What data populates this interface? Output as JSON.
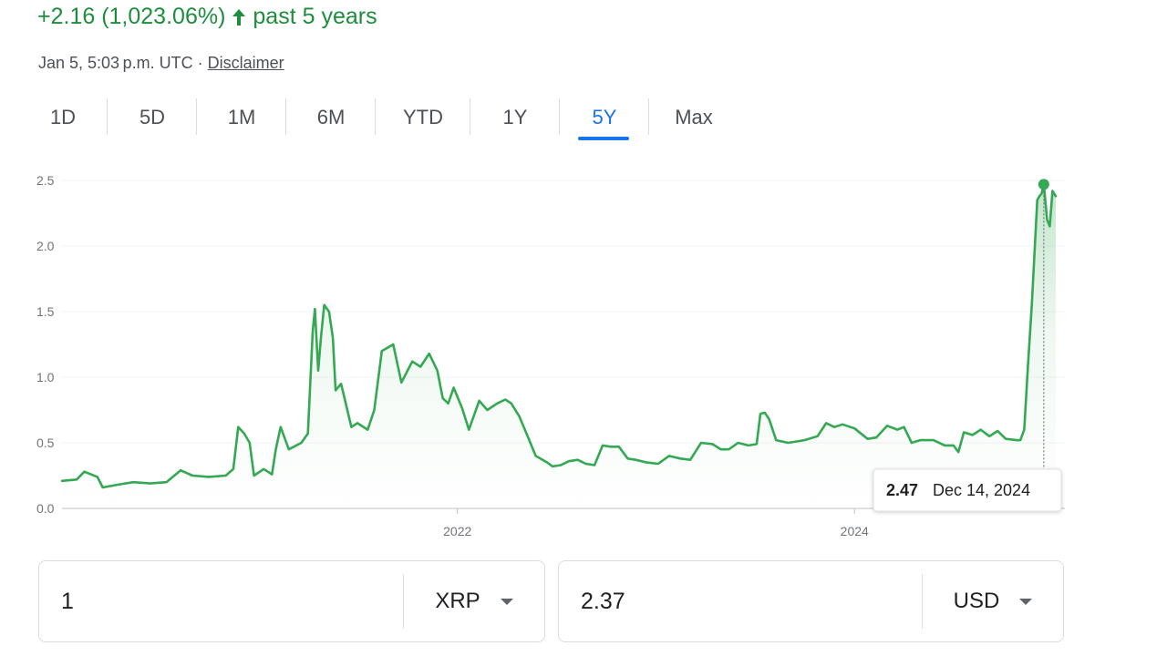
{
  "header": {
    "change_text": "+2.16 (1,023.06%)",
    "period_text": "past 5 years",
    "timestamp": "Jan 5, 5:03 p.m. UTC · ",
    "disclaimer": "Disclaimer"
  },
  "tabs": [
    {
      "label": "1D"
    },
    {
      "label": "5D"
    },
    {
      "label": "1M"
    },
    {
      "label": "6M"
    },
    {
      "label": "YTD"
    },
    {
      "label": "1Y"
    },
    {
      "label": "5Y"
    },
    {
      "label": "Max"
    }
  ],
  "colors": {
    "line": "#34a853",
    "accent": "#1a73e8",
    "positive": "#1e8e3e"
  },
  "chart_data": {
    "type": "area",
    "x_ticks": [
      "2022",
      "2024"
    ],
    "y_ticks": [
      "0.0",
      "0.5",
      "1.0",
      "1.5",
      "2.0",
      "2.5"
    ],
    "ylim": [
      0,
      2.5
    ],
    "xlim": [
      "2020-01-05",
      "2025-01-05"
    ],
    "grid": true,
    "series": [
      {
        "points": [
          [
            "2020-01-05",
            0.21
          ],
          [
            "2020-02-01",
            0.22
          ],
          [
            "2020-02-15",
            0.28
          ],
          [
            "2020-03-10",
            0.24
          ],
          [
            "2020-03-20",
            0.16
          ],
          [
            "2020-04-15",
            0.18
          ],
          [
            "2020-05-15",
            0.2
          ],
          [
            "2020-06-15",
            0.19
          ],
          [
            "2020-07-15",
            0.2
          ],
          [
            "2020-08-10",
            0.29
          ],
          [
            "2020-09-01",
            0.25
          ],
          [
            "2020-10-01",
            0.24
          ],
          [
            "2020-11-01",
            0.25
          ],
          [
            "2020-11-15",
            0.3
          ],
          [
            "2020-11-24",
            0.62
          ],
          [
            "2020-12-05",
            0.57
          ],
          [
            "2020-12-15",
            0.5
          ],
          [
            "2020-12-23",
            0.25
          ],
          [
            "2021-01-10",
            0.3
          ],
          [
            "2021-01-25",
            0.26
          ],
          [
            "2021-02-01",
            0.45
          ],
          [
            "2021-02-10",
            0.62
          ],
          [
            "2021-02-25",
            0.45
          ],
          [
            "2021-03-20",
            0.5
          ],
          [
            "2021-04-01",
            0.57
          ],
          [
            "2021-04-10",
            1.35
          ],
          [
            "2021-04-14",
            1.52
          ],
          [
            "2021-04-20",
            1.05
          ],
          [
            "2021-04-25",
            1.3
          ],
          [
            "2021-05-01",
            1.55
          ],
          [
            "2021-05-10",
            1.5
          ],
          [
            "2021-05-17",
            1.3
          ],
          [
            "2021-05-22",
            0.9
          ],
          [
            "2021-06-01",
            0.95
          ],
          [
            "2021-06-20",
            0.62
          ],
          [
            "2021-07-01",
            0.65
          ],
          [
            "2021-07-20",
            0.6
          ],
          [
            "2021-08-01",
            0.75
          ],
          [
            "2021-08-15",
            1.2
          ],
          [
            "2021-09-05",
            1.25
          ],
          [
            "2021-09-20",
            0.96
          ],
          [
            "2021-10-10",
            1.12
          ],
          [
            "2021-10-25",
            1.08
          ],
          [
            "2021-11-10",
            1.18
          ],
          [
            "2021-11-25",
            1.05
          ],
          [
            "2021-12-05",
            0.84
          ],
          [
            "2021-12-15",
            0.8
          ],
          [
            "2021-12-25",
            0.92
          ],
          [
            "2022-01-10",
            0.76
          ],
          [
            "2022-01-22",
            0.6
          ],
          [
            "2022-02-10",
            0.82
          ],
          [
            "2022-02-25",
            0.75
          ],
          [
            "2022-03-15",
            0.8
          ],
          [
            "2022-03-30",
            0.83
          ],
          [
            "2022-04-10",
            0.8
          ],
          [
            "2022-04-25",
            0.7
          ],
          [
            "2022-05-10",
            0.55
          ],
          [
            "2022-05-25",
            0.4
          ],
          [
            "2022-06-15",
            0.35
          ],
          [
            "2022-06-25",
            0.32
          ],
          [
            "2022-07-10",
            0.33
          ],
          [
            "2022-07-25",
            0.36
          ],
          [
            "2022-08-10",
            0.37
          ],
          [
            "2022-08-25",
            0.34
          ],
          [
            "2022-09-10",
            0.33
          ],
          [
            "2022-09-25",
            0.48
          ],
          [
            "2022-10-10",
            0.47
          ],
          [
            "2022-10-25",
            0.47
          ],
          [
            "2022-11-10",
            0.38
          ],
          [
            "2022-11-25",
            0.37
          ],
          [
            "2022-12-15",
            0.35
          ],
          [
            "2023-01-05",
            0.34
          ],
          [
            "2023-01-25",
            0.4
          ],
          [
            "2023-02-15",
            0.38
          ],
          [
            "2023-03-05",
            0.37
          ],
          [
            "2023-03-25",
            0.5
          ],
          [
            "2023-04-15",
            0.49
          ],
          [
            "2023-04-30",
            0.45
          ],
          [
            "2023-05-15",
            0.45
          ],
          [
            "2023-06-01",
            0.5
          ],
          [
            "2023-06-20",
            0.48
          ],
          [
            "2023-07-05",
            0.49
          ],
          [
            "2023-07-12",
            0.72
          ],
          [
            "2023-07-20",
            0.73
          ],
          [
            "2023-07-28",
            0.68
          ],
          [
            "2023-08-10",
            0.52
          ],
          [
            "2023-09-01",
            0.5
          ],
          [
            "2023-10-01",
            0.52
          ],
          [
            "2023-10-25",
            0.55
          ],
          [
            "2023-11-10",
            0.65
          ],
          [
            "2023-11-25",
            0.62
          ],
          [
            "2023-12-10",
            0.64
          ],
          [
            "2024-01-01",
            0.61
          ],
          [
            "2024-01-25",
            0.53
          ],
          [
            "2024-02-10",
            0.54
          ],
          [
            "2024-03-01",
            0.63
          ],
          [
            "2024-03-20",
            0.6
          ],
          [
            "2024-04-01",
            0.62
          ],
          [
            "2024-04-15",
            0.5
          ],
          [
            "2024-05-01",
            0.52
          ],
          [
            "2024-05-25",
            0.52
          ],
          [
            "2024-06-15",
            0.48
          ],
          [
            "2024-07-01",
            0.48
          ],
          [
            "2024-07-10",
            0.43
          ],
          [
            "2024-07-20",
            0.58
          ],
          [
            "2024-08-05",
            0.56
          ],
          [
            "2024-08-20",
            0.6
          ],
          [
            "2024-09-05",
            0.55
          ],
          [
            "2024-09-20",
            0.59
          ],
          [
            "2024-10-05",
            0.53
          ],
          [
            "2024-10-25",
            0.52
          ],
          [
            "2024-11-01",
            0.52
          ],
          [
            "2024-11-08",
            0.6
          ],
          [
            "2024-11-15",
            1.1
          ],
          [
            "2024-11-22",
            1.55
          ],
          [
            "2024-12-02",
            2.35
          ],
          [
            "2024-12-06",
            2.38
          ],
          [
            "2024-12-10",
            2.4
          ],
          [
            "2024-12-14",
            2.47
          ],
          [
            "2024-12-20",
            2.2
          ],
          [
            "2024-12-25",
            2.15
          ],
          [
            "2024-12-30",
            2.42
          ],
          [
            "2025-01-05",
            2.38
          ]
        ]
      }
    ],
    "tooltip": {
      "value": "2.47",
      "date": "Dec 14, 2024",
      "x": "2024-12-14",
      "y": 2.47
    }
  },
  "converter": {
    "left": {
      "value": "1",
      "unit": "XRP"
    },
    "right": {
      "value": "2.37",
      "unit": "USD"
    }
  }
}
